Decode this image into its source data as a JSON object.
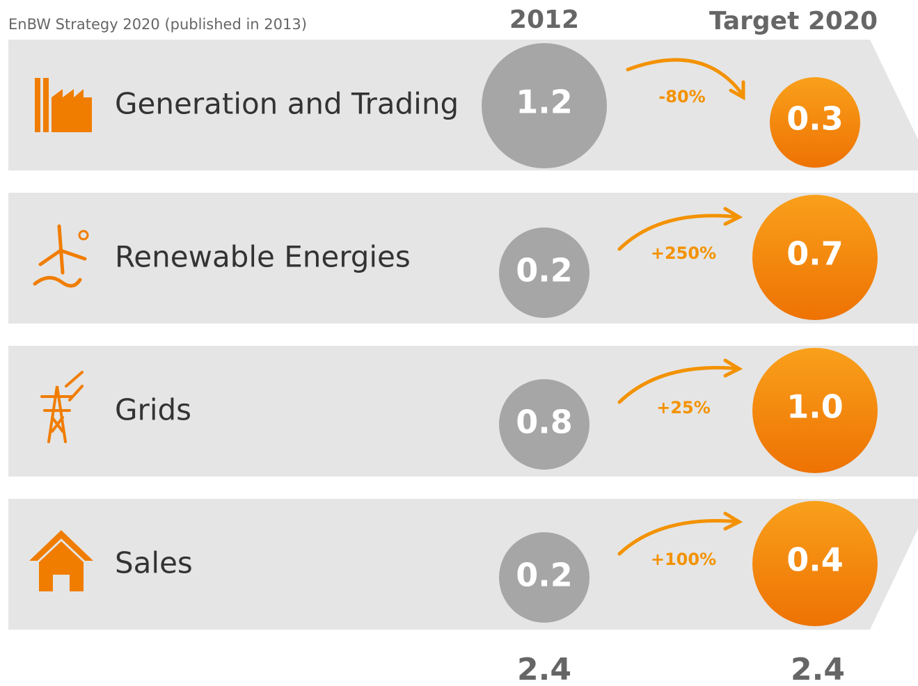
{
  "header": {
    "subtitle": "EnBW Strategy 2020 (published in 2013)",
    "col_2012": "2012",
    "col_target": "Target 2020"
  },
  "rows": [
    {
      "label": "Generation and Trading",
      "value_2012": "1.2",
      "change": "-80%",
      "target": "0.3"
    },
    {
      "label": "Renewable Energies",
      "value_2012": "0.2",
      "change": "+250%",
      "target": "0.7"
    },
    {
      "label": "Grids",
      "value_2012": "0.8",
      "change": "+25%",
      "target": "1.0"
    },
    {
      "label": "Sales",
      "value_2012": "0.2",
      "change": "+100%",
      "target": "0.4"
    }
  ],
  "totals": {
    "total_2012": "2.4",
    "total_target": "2.4"
  }
}
